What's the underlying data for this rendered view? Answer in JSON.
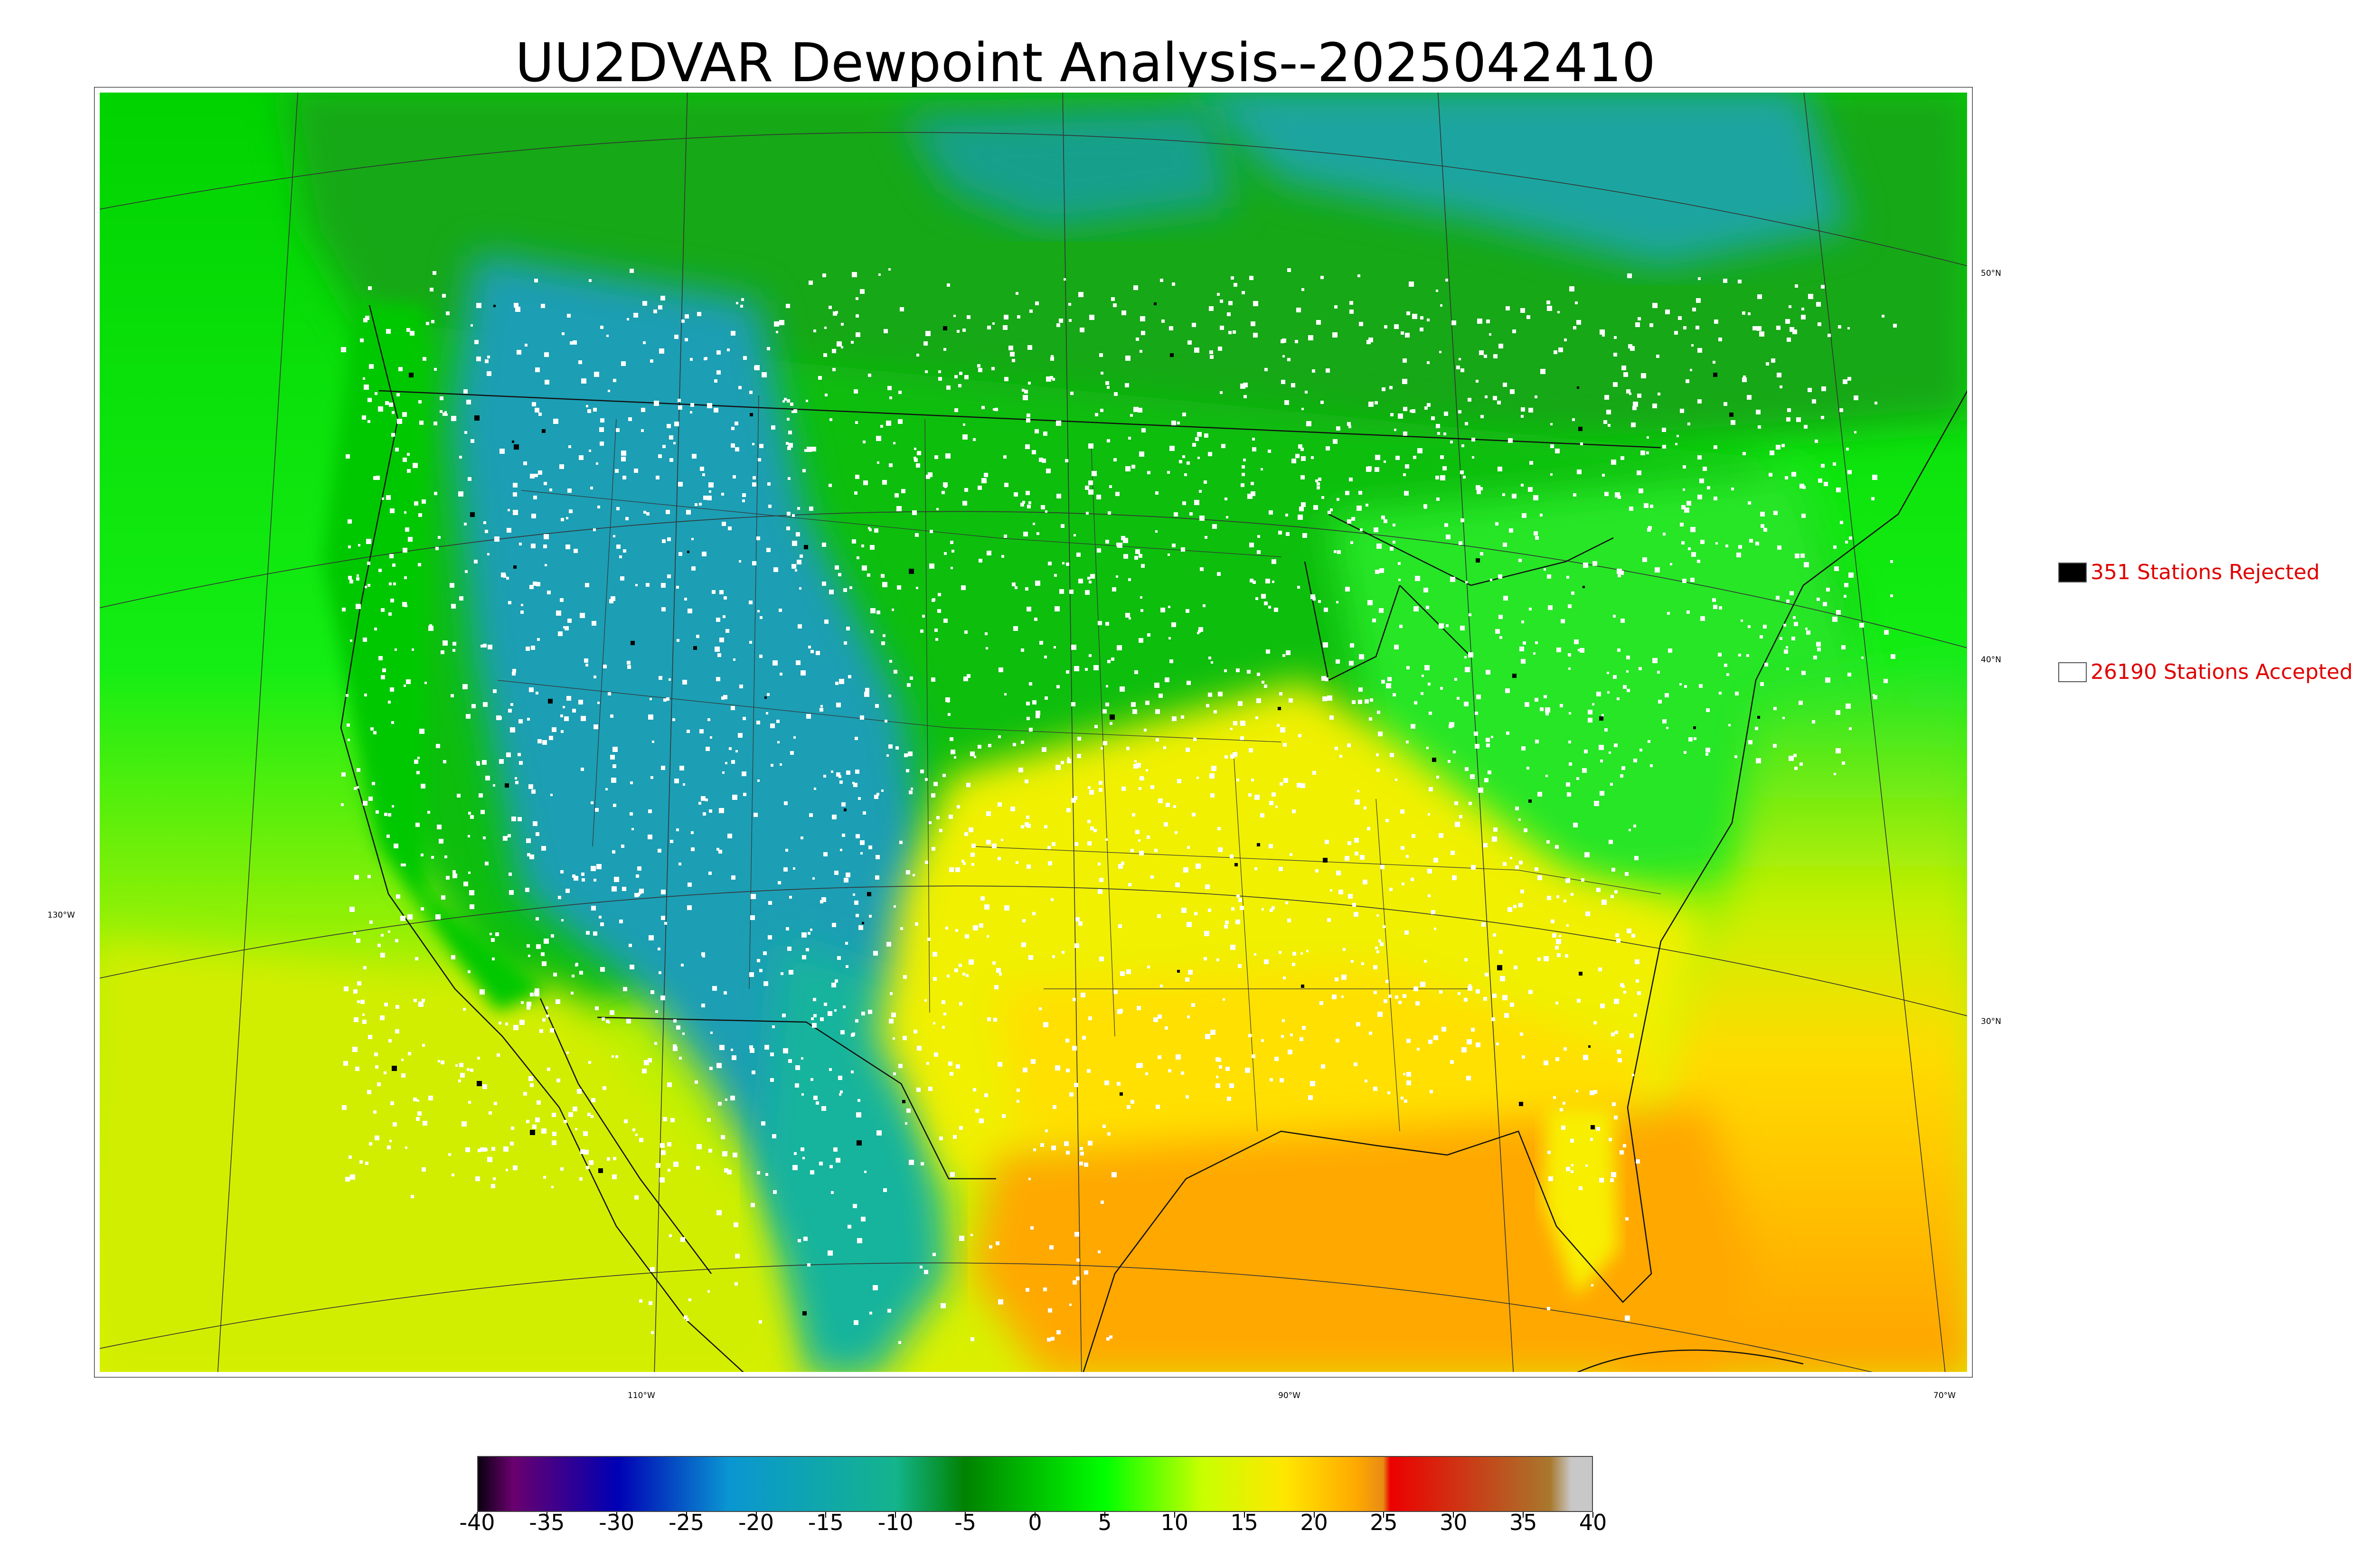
{
  "title": "UU2DVAR Dewpoint Analysis--2025042410",
  "map": {
    "longitude_labels": [
      "130°W",
      "110°W",
      "90°W",
      "70°W"
    ],
    "latitude_labels": [
      "50°N",
      "40°N",
      "30°N"
    ]
  },
  "legend": {
    "rejected": {
      "label": "351 Stations Rejected",
      "color": "#000000"
    },
    "accepted": {
      "label": "26190 Stations Accepted",
      "color": "#ffffff"
    }
  },
  "colorbar": {
    "min": -40,
    "max": 40,
    "tick_labels": [
      "-40",
      "-35",
      "-30",
      "-25",
      "-20",
      "-15",
      "-10",
      "-5",
      "0",
      "5",
      "10",
      "15",
      "20",
      "25",
      "30",
      "35",
      "40"
    ],
    "stops": [
      {
        "value": -40,
        "color": "#0a0010"
      },
      {
        "value": -37.5,
        "color": "#6a006e"
      },
      {
        "value": -30,
        "color": "#0000b4"
      },
      {
        "value": -22,
        "color": "#0a96d2"
      },
      {
        "value": -10,
        "color": "#14b48c"
      },
      {
        "value": -5,
        "color": "#008200"
      },
      {
        "value": 5,
        "color": "#00ff00"
      },
      {
        "value": 12,
        "color": "#c8ff00"
      },
      {
        "value": 18,
        "color": "#ffe600"
      },
      {
        "value": 23,
        "color": "#ffaa00"
      },
      {
        "value": 25,
        "color": "#e88c14"
      },
      {
        "value": 25.5,
        "color": "#ec0000"
      },
      {
        "value": 37,
        "color": "#a8782d"
      },
      {
        "value": 38.5,
        "color": "#c8c8c8"
      }
    ]
  },
  "field_colors": {
    "ocean_pacific_north": "#14e614",
    "ocean_pacific_south": "#c8f000",
    "gulf_atlantic": "#ffb400",
    "rockies": "#1ea0b4",
    "plains": "#00b400",
    "south": "#ffe628",
    "canada": "#14a014",
    "hudson": "#1ea0a0",
    "accepted_station": "#ffffff",
    "rejected_station": "#000000"
  }
}
